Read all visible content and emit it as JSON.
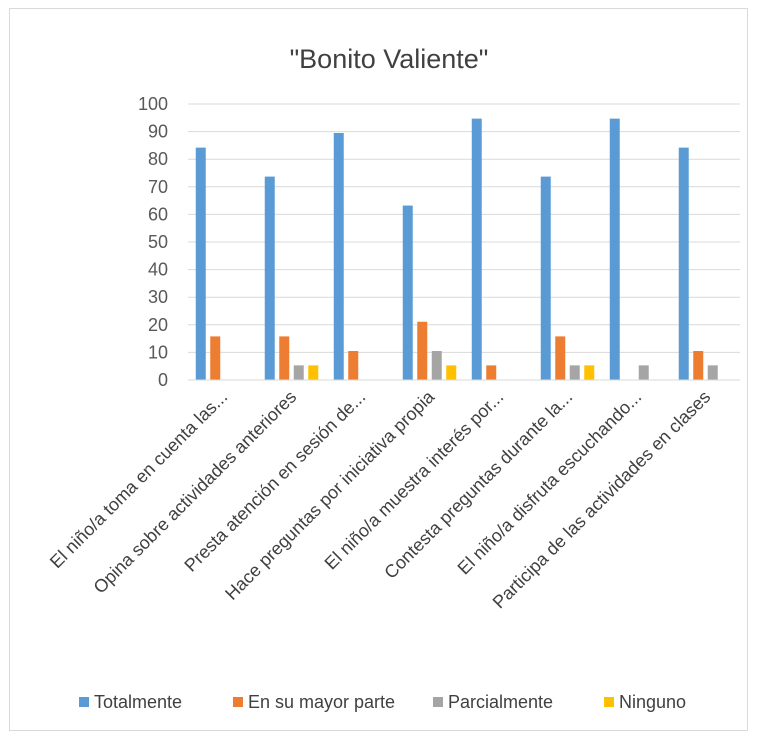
{
  "chart_data": {
    "type": "bar",
    "title": "\"Bonito Valiente\"",
    "xlabel": "",
    "ylabel": "",
    "ylim": [
      0,
      100
    ],
    "yticks": [
      0,
      10,
      20,
      30,
      40,
      50,
      60,
      70,
      80,
      90,
      100
    ],
    "grid": true,
    "legend_position": "bottom",
    "categories": [
      "El niño/a toma en cuenta las...",
      "Opina sobre actividades anteriores",
      "Presta atención en sesión de...",
      "Hace preguntas por iniciativa propia",
      "El niño/a muestra interés por...",
      "Contesta preguntas durante la...",
      "El niño/a disfruta escuchando...",
      "Participa de las actividades en clases"
    ],
    "series": [
      {
        "name": "Totalmente",
        "color": "#5b9bd5",
        "values": [
          84.2,
          73.7,
          89.5,
          63.2,
          94.7,
          73.7,
          94.7,
          84.2
        ]
      },
      {
        "name": "En su mayor parte",
        "color": "#ed7d31",
        "values": [
          15.8,
          15.8,
          10.5,
          21.1,
          5.3,
          15.8,
          0,
          10.5
        ]
      },
      {
        "name": "Parcialmente",
        "color": "#a5a5a5",
        "values": [
          0,
          5.3,
          0,
          10.5,
          0,
          5.3,
          5.3,
          5.3
        ]
      },
      {
        "name": "Ninguno",
        "color": "#ffc000",
        "values": [
          0,
          5.3,
          0,
          5.3,
          0,
          5.3,
          0,
          0
        ]
      }
    ]
  }
}
